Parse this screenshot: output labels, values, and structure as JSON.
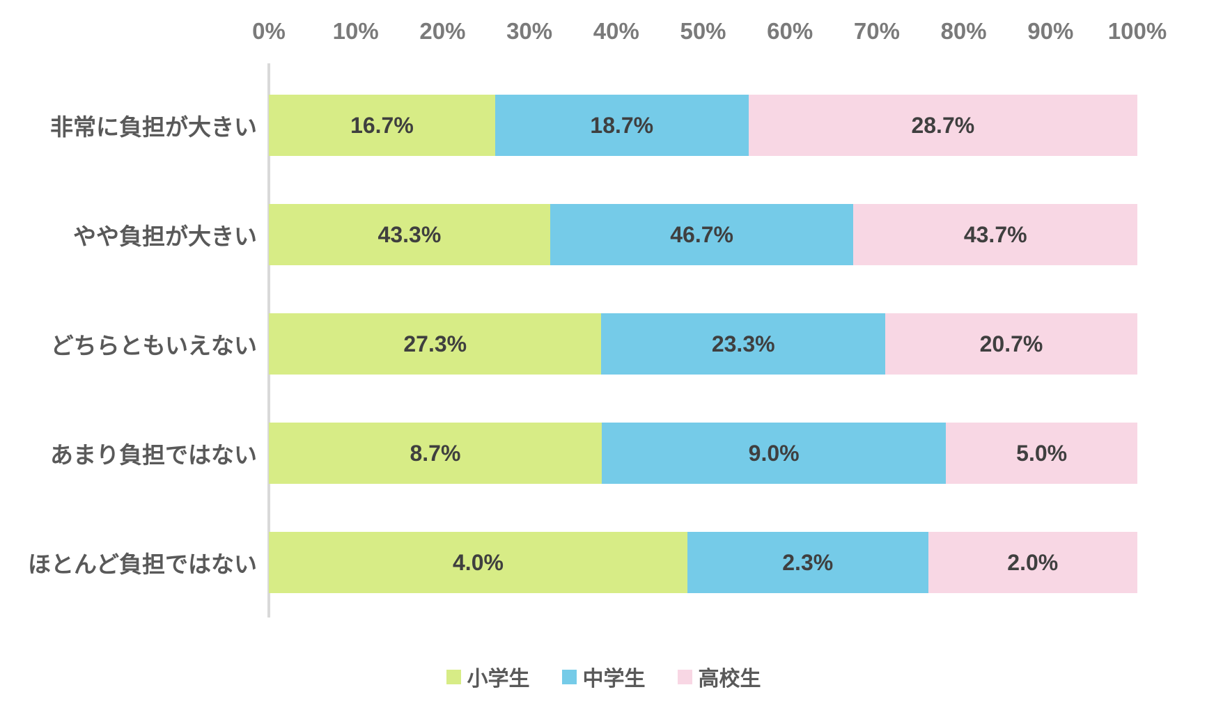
{
  "chart_data": {
    "type": "bar",
    "subtype": "stacked-100-normalized",
    "orientation": "horizontal",
    "title": "",
    "categories": [
      "非常に負担が大きい",
      "やや負担が大きい",
      "どちらともいえない",
      "あまり負担ではない",
      "ほとんど負担ではない"
    ],
    "series": [
      {
        "name": "小学生",
        "color": "#d7ec86",
        "values": [
          16.7,
          43.3,
          27.3,
          8.7,
          4.0
        ]
      },
      {
        "name": "中学生",
        "color": "#75cbe8",
        "values": [
          18.7,
          46.7,
          23.3,
          9.0,
          2.3
        ]
      },
      {
        "name": "高校生",
        "color": "#f8d7e4",
        "values": [
          28.7,
          43.7,
          20.7,
          5.0,
          2.0
        ]
      }
    ],
    "x_axis": {
      "ticks": [
        "0%",
        "10%",
        "20%",
        "30%",
        "40%",
        "50%",
        "60%",
        "70%",
        "80%",
        "90%",
        "100%"
      ],
      "range": [
        0,
        100
      ]
    },
    "value_suffix": "%",
    "value_decimals": 1,
    "grid": false,
    "legend_position": "bottom",
    "note": "segment widths are normalized to each row's total; labels show raw values"
  },
  "colors": {
    "background": "#ffffff",
    "axis_line": "#d9d9d9",
    "tick_text": "#7a7a7a",
    "category_text": "#595959",
    "data_label_text": "#3f3f3f",
    "legend_text": "#595959"
  }
}
